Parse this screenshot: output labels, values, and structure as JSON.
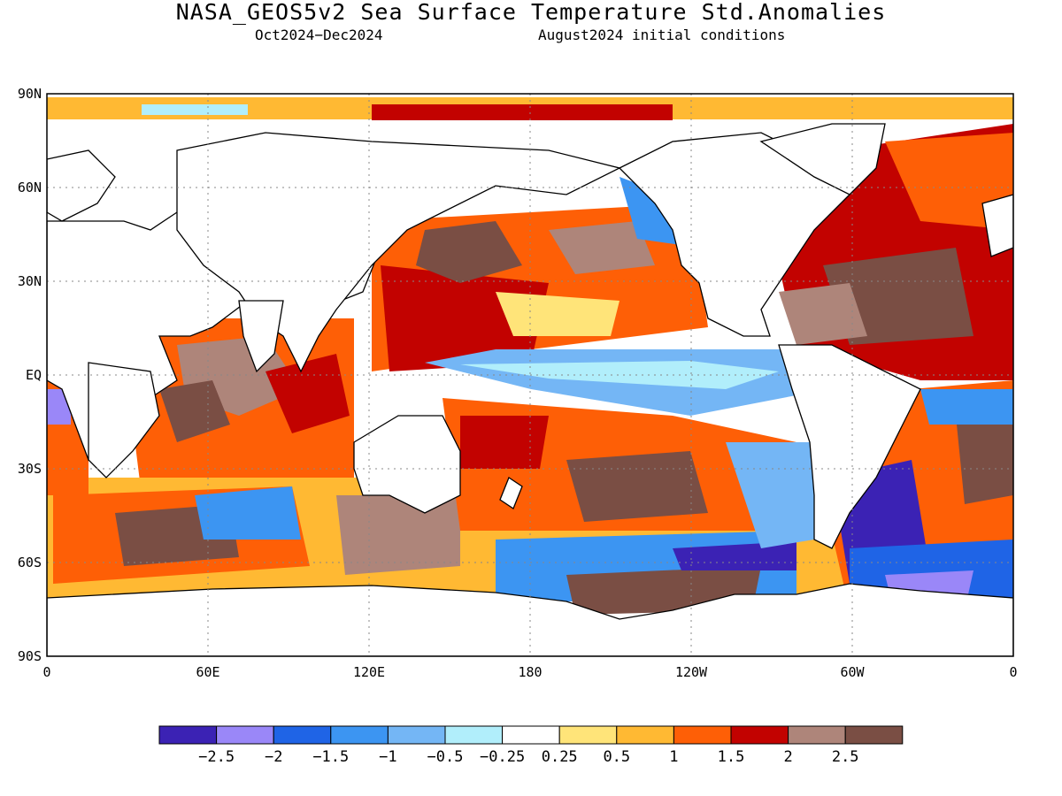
{
  "title": "NASA_GEOS5v2 Sea Surface Temperature Std.Anomalies",
  "subtitle_left": "Oct2024−Dec2024",
  "subtitle_right": "August2024 initial conditions",
  "lat_labels": [
    "90N",
    "60N",
    "30N",
    "EQ",
    "30S",
    "60S",
    "90S"
  ],
  "lon_labels": [
    "0",
    "60E",
    "120E",
    "180",
    "120W",
    "60W",
    "0"
  ],
  "colorbar": {
    "colors": [
      "#3b22b4",
      "#9a87f8",
      "#1f64e6",
      "#3c95f2",
      "#74b6f5",
      "#b1eefb",
      "#ffffff",
      "#ffe479",
      "#ffb933",
      "#fe5f06",
      "#c20200",
      "#ae857a",
      "#7a4e44"
    ],
    "labels": [
      "−2.5",
      "−2",
      "−1.5",
      "−1",
      "−0.5",
      "−0.25",
      "0.25",
      "0.5",
      "1",
      "1.5",
      "2",
      "2.5"
    ]
  }
}
